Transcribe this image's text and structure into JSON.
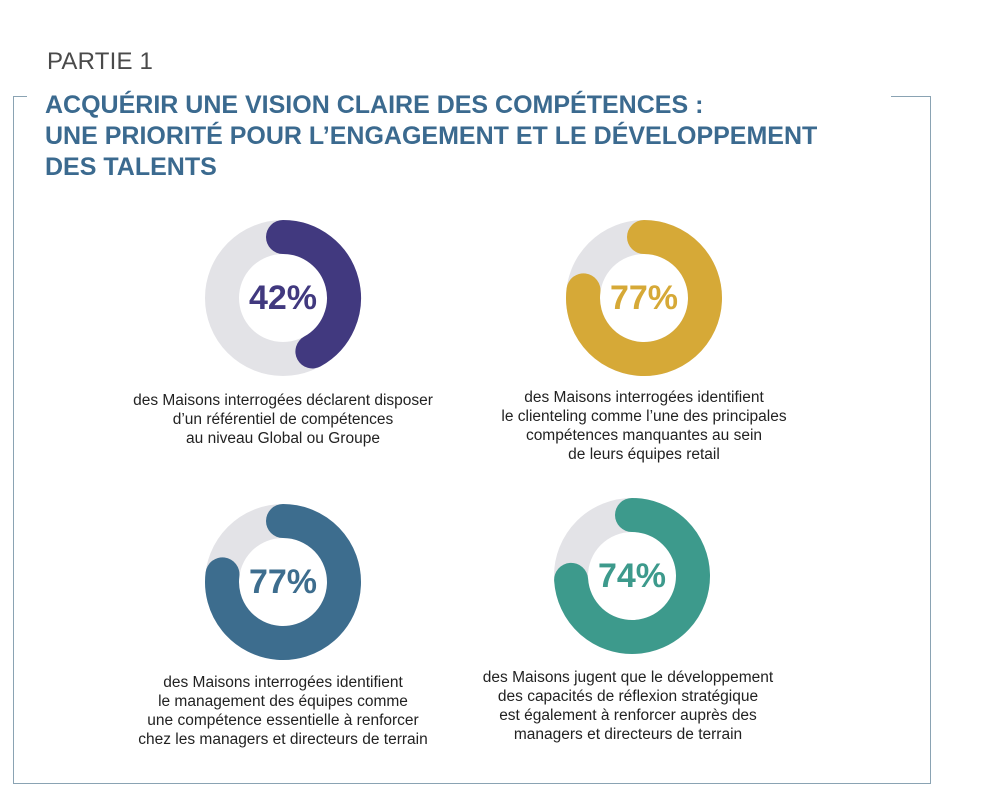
{
  "header": {
    "part": "PARTIE 1",
    "title_lines": [
      "ACQUÉRIR UNE VISION CLAIRE DES COMPÉTENCES :",
      "UNE PRIORITÉ POUR L’ENGAGEMENT ET LE DÉVELOPPEMENT",
      "DES TALENTS"
    ]
  },
  "colors": {
    "track": "#e3e3e7",
    "title": "#3b6a8f",
    "frame": "#8aa3b3"
  },
  "chart_data": [
    {
      "type": "pie",
      "value": 42,
      "label": "42%",
      "color": "#41397f",
      "description_lines": [
        "des Maisons interrogées déclarent disposer",
        "d’un référentiel de compétences",
        "au niveau Global ou Groupe"
      ]
    },
    {
      "type": "pie",
      "value": 77,
      "label": "77%",
      "color": "#d6a937",
      "description_lines": [
        "des Maisons interrogées identifient",
        "le clienteling comme l’une des principales",
        "compétences manquantes au sein",
        "de leurs équipes retail"
      ]
    },
    {
      "type": "pie",
      "value": 77,
      "label": "77%",
      "color": "#3d6d8e",
      "description_lines": [
        "des Maisons interrogées identifient",
        "le management des équipes comme",
        "une compétence essentielle à renforcer",
        "chez les managers et directeurs de terrain"
      ]
    },
    {
      "type": "pie",
      "value": 74,
      "label": "74%",
      "color": "#3d9a8c",
      "description_lines": [
        "des Maisons jugent que le développement",
        "des capacités de réflexion stratégique",
        "est également à renforcer auprès des",
        "managers et directeurs de terrain"
      ]
    }
  ]
}
